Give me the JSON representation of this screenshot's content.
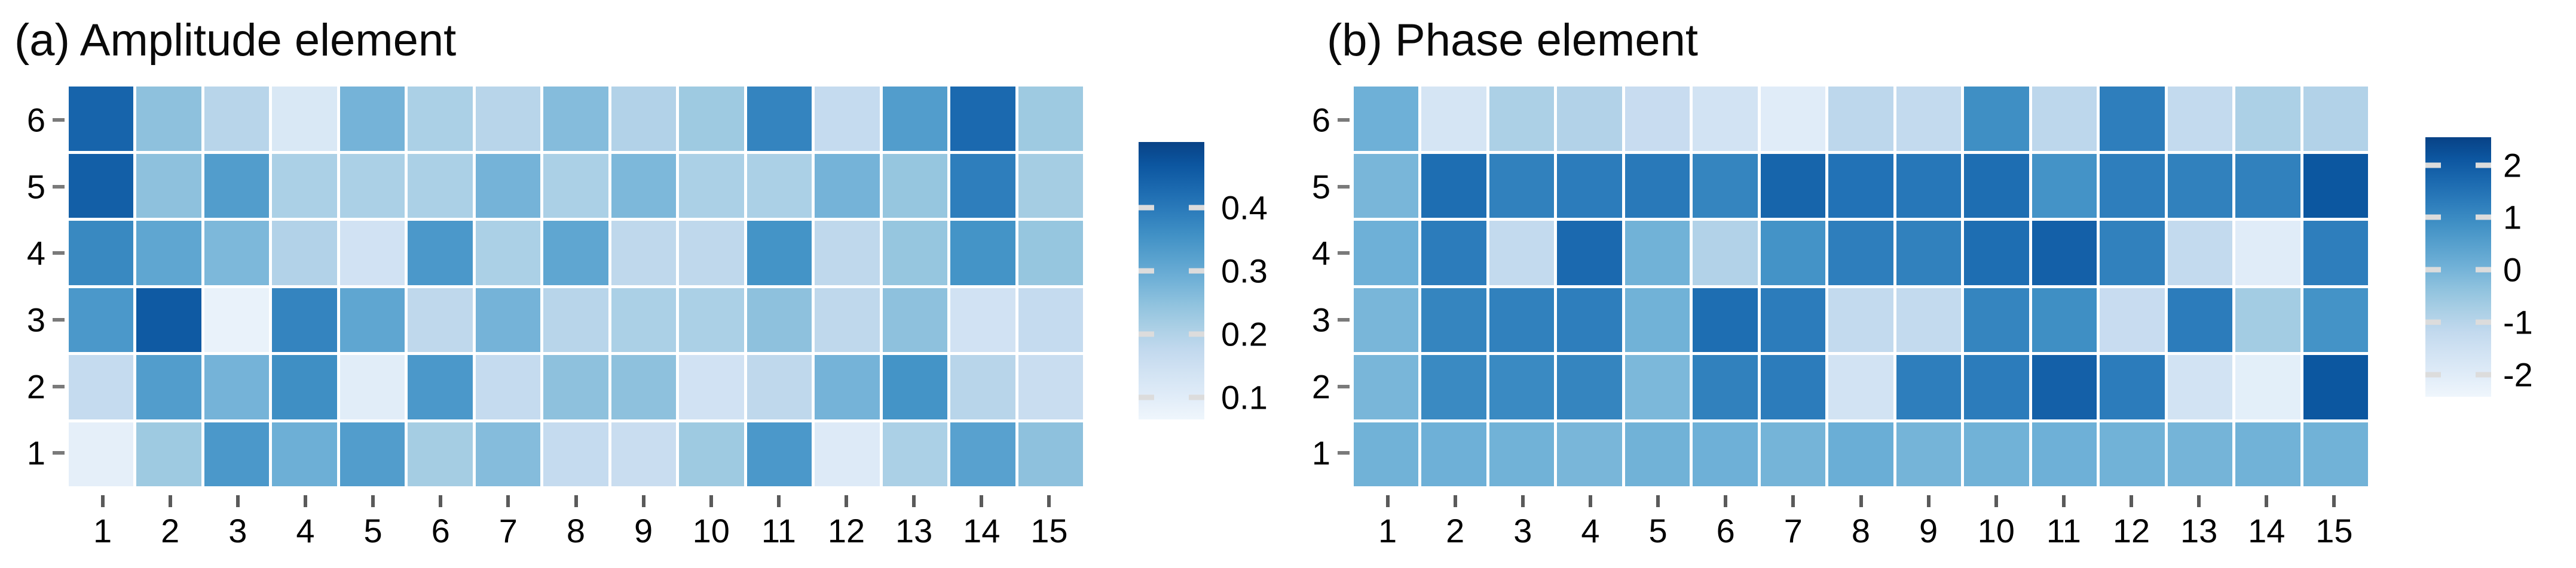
{
  "figure": {
    "background": "#ffffff",
    "panel_a_title": "(a) Amplitude element",
    "panel_b_title": "(b) Phase element"
  },
  "colormap": {
    "name": "Blues",
    "stops": [
      "#f7fbff",
      "#deebf7",
      "#c6dbef",
      "#9ecae1",
      "#6baed6",
      "#4292c6",
      "#2171b5",
      "#08519c",
      "#08306b"
    ],
    "t_low": 0.04,
    "t_high": 0.93
  },
  "chart_data": [
    {
      "type": "heatmap",
      "title": "(a) Amplitude element",
      "x_tick_labels": [
        "1",
        "2",
        "3",
        "4",
        "5",
        "6",
        "7",
        "8",
        "9",
        "10",
        "11",
        "12",
        "13",
        "14",
        "15"
      ],
      "y_tick_labels": [
        "6",
        "5",
        "4",
        "3",
        "2",
        "1"
      ],
      "grid_shape": {
        "rows": 6,
        "cols": 15
      },
      "value_range": [
        0.065,
        0.504
      ],
      "colorbar": {
        "position": "right",
        "tick_labels": [
          "0.4",
          "0.3",
          "0.2",
          "0.1"
        ],
        "tick_values": [
          0.4,
          0.3,
          0.2,
          0.1
        ]
      },
      "rows_order_note": "rows listed top-to-bottom corresponding to y labels 6,5,4,3,2,1",
      "values": [
        [
          0.44,
          0.25,
          0.19,
          0.12,
          0.28,
          0.21,
          0.19,
          0.26,
          0.2,
          0.23,
          0.38,
          0.17,
          0.33,
          0.43,
          0.23
        ],
        [
          0.45,
          0.25,
          0.33,
          0.21,
          0.21,
          0.21,
          0.28,
          0.21,
          0.27,
          0.21,
          0.21,
          0.28,
          0.24,
          0.39,
          0.22
        ],
        [
          0.37,
          0.31,
          0.27,
          0.2,
          0.14,
          0.34,
          0.21,
          0.31,
          0.18,
          0.18,
          0.35,
          0.18,
          0.24,
          0.35,
          0.24
        ],
        [
          0.34,
          0.46,
          0.08,
          0.38,
          0.31,
          0.18,
          0.28,
          0.19,
          0.21,
          0.21,
          0.25,
          0.18,
          0.25,
          0.14,
          0.17
        ],
        [
          0.17,
          0.33,
          0.28,
          0.36,
          0.1,
          0.34,
          0.17,
          0.25,
          0.25,
          0.14,
          0.18,
          0.28,
          0.35,
          0.19,
          0.16
        ],
        [
          0.09,
          0.23,
          0.34,
          0.29,
          0.33,
          0.22,
          0.26,
          0.17,
          0.16,
          0.23,
          0.34,
          0.11,
          0.21,
          0.32,
          0.25
        ]
      ]
    },
    {
      "type": "heatmap",
      "title": "(b) Phase element",
      "x_tick_labels": [
        "1",
        "2",
        "3",
        "4",
        "5",
        "6",
        "7",
        "8",
        "9",
        "10",
        "11",
        "12",
        "13",
        "14",
        "15"
      ],
      "y_tick_labels": [
        "6",
        "5",
        "4",
        "3",
        "2",
        "1"
      ],
      "grid_shape": {
        "rows": 6,
        "cols": 15
      },
      "value_range": [
        -2.42,
        2.53
      ],
      "colorbar": {
        "position": "right",
        "tick_labels": [
          "2",
          "1",
          "0",
          "-1",
          "-2"
        ],
        "tick_values": [
          2,
          1,
          0,
          -1,
          -2
        ]
      },
      "rows_order_note": "rows listed top-to-bottom corresponding to y labels 6,5,4,3,2,1",
      "values": [
        [
          0.1,
          -1.7,
          -0.8,
          -0.9,
          -1.3,
          -1.6,
          -2.0,
          -1.1,
          -1.2,
          0.9,
          -1.1,
          1.25,
          -1.2,
          -0.8,
          -0.9
        ],
        [
          -0.05,
          1.6,
          1.2,
          1.3,
          1.35,
          1.1,
          1.8,
          1.5,
          1.4,
          1.6,
          0.8,
          1.25,
          1.2,
          1.2,
          2.1
        ],
        [
          0.1,
          1.3,
          -1.2,
          1.7,
          0.05,
          -0.9,
          0.8,
          1.25,
          1.2,
          1.6,
          1.9,
          1.2,
          -1.2,
          -2.0,
          1.25
        ],
        [
          -0.05,
          1.1,
          1.2,
          1.25,
          0.05,
          1.6,
          1.3,
          -1.2,
          -1.2,
          1.1,
          0.9,
          -1.3,
          1.3,
          -0.65,
          0.8
        ],
        [
          -0.05,
          1.0,
          1.0,
          1.1,
          -0.1,
          1.2,
          1.3,
          -1.6,
          1.25,
          1.3,
          1.9,
          1.3,
          -1.6,
          -2.1,
          2.1
        ],
        [
          0.05,
          0.1,
          0.05,
          -0.05,
          0.05,
          0.1,
          0.0,
          0.15,
          0.0,
          0.05,
          0.1,
          0.05,
          0.0,
          0.05,
          0.05
        ]
      ]
    }
  ]
}
